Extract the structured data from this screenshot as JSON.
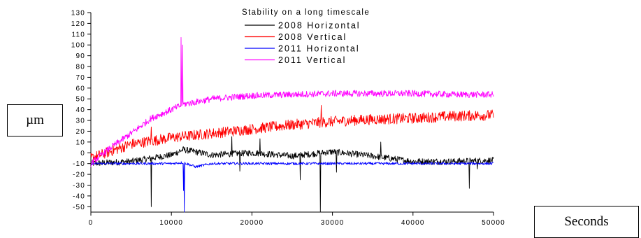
{
  "chart_data": {
    "type": "line",
    "title": "Stability on a long timescale",
    "ylabel": "µm",
    "xlabel": "Seconds",
    "xlim": [
      0,
      50000
    ],
    "ylim": [
      -55,
      130
    ],
    "xticks": [
      0,
      10000,
      20000,
      30000,
      40000,
      50000
    ],
    "yticks": [
      -50,
      -40,
      -30,
      -20,
      -10,
      0,
      10,
      20,
      30,
      40,
      50,
      60,
      70,
      80,
      90,
      100,
      110,
      120,
      130
    ],
    "grid": false,
    "legend_position": "top-center",
    "series": [
      {
        "name": "2008 Horizontal",
        "color": "#000000",
        "noise": 3,
        "points": [
          [
            0,
            -10
          ],
          [
            5000,
            -8
          ],
          [
            10000,
            -2
          ],
          [
            11500,
            3
          ],
          [
            15000,
            -2
          ],
          [
            20000,
            0
          ],
          [
            25000,
            -3
          ],
          [
            30000,
            1
          ],
          [
            35000,
            -3
          ],
          [
            40000,
            -8
          ],
          [
            45000,
            -8
          ],
          [
            50000,
            -7
          ]
        ],
        "spikes": [
          [
            7500,
            -50
          ],
          [
            11000,
            3
          ],
          [
            17500,
            15
          ],
          [
            18500,
            -17
          ],
          [
            21000,
            13
          ],
          [
            26000,
            -25
          ],
          [
            28500,
            -55
          ],
          [
            30500,
            -18
          ],
          [
            36000,
            10
          ],
          [
            47000,
            -33
          ],
          [
            48000,
            -15
          ]
        ]
      },
      {
        "name": "2008 Vertical",
        "color": "#ff0000",
        "noise": 5,
        "points": [
          [
            0,
            -5
          ],
          [
            5000,
            8
          ],
          [
            10000,
            14
          ],
          [
            15000,
            18
          ],
          [
            20000,
            22
          ],
          [
            25000,
            26
          ],
          [
            30000,
            29
          ],
          [
            35000,
            31
          ],
          [
            40000,
            32
          ],
          [
            45000,
            34
          ],
          [
            50000,
            35
          ]
        ],
        "spikes": [
          [
            7500,
            24
          ],
          [
            28600,
            44
          ]
        ]
      },
      {
        "name": "2011 Horizontal",
        "color": "#0000ff",
        "noise": 1.2,
        "points": [
          [
            0,
            -10
          ],
          [
            5000,
            -10
          ],
          [
            10000,
            -10
          ],
          [
            11500,
            -9
          ],
          [
            13000,
            -13
          ],
          [
            15000,
            -10
          ],
          [
            20000,
            -10
          ],
          [
            30000,
            -10
          ],
          [
            40000,
            -10
          ],
          [
            50000,
            -10
          ]
        ],
        "spikes": [
          [
            11500,
            -35
          ],
          [
            11600,
            -55
          ]
        ]
      },
      {
        "name": "2011 Vertical",
        "color": "#ff00ff",
        "noise": 3,
        "points": [
          [
            0,
            -10
          ],
          [
            2500,
            5
          ],
          [
            5000,
            18
          ],
          [
            7500,
            32
          ],
          [
            10000,
            40
          ],
          [
            11500,
            45
          ],
          [
            13000,
            47
          ],
          [
            15000,
            50
          ],
          [
            20000,
            53
          ],
          [
            25000,
            54
          ],
          [
            30000,
            55
          ],
          [
            35000,
            55
          ],
          [
            40000,
            55
          ],
          [
            45000,
            54
          ],
          [
            50000,
            54
          ]
        ],
        "spikes": [
          [
            11200,
            107
          ],
          [
            11400,
            100
          ]
        ]
      }
    ]
  }
}
